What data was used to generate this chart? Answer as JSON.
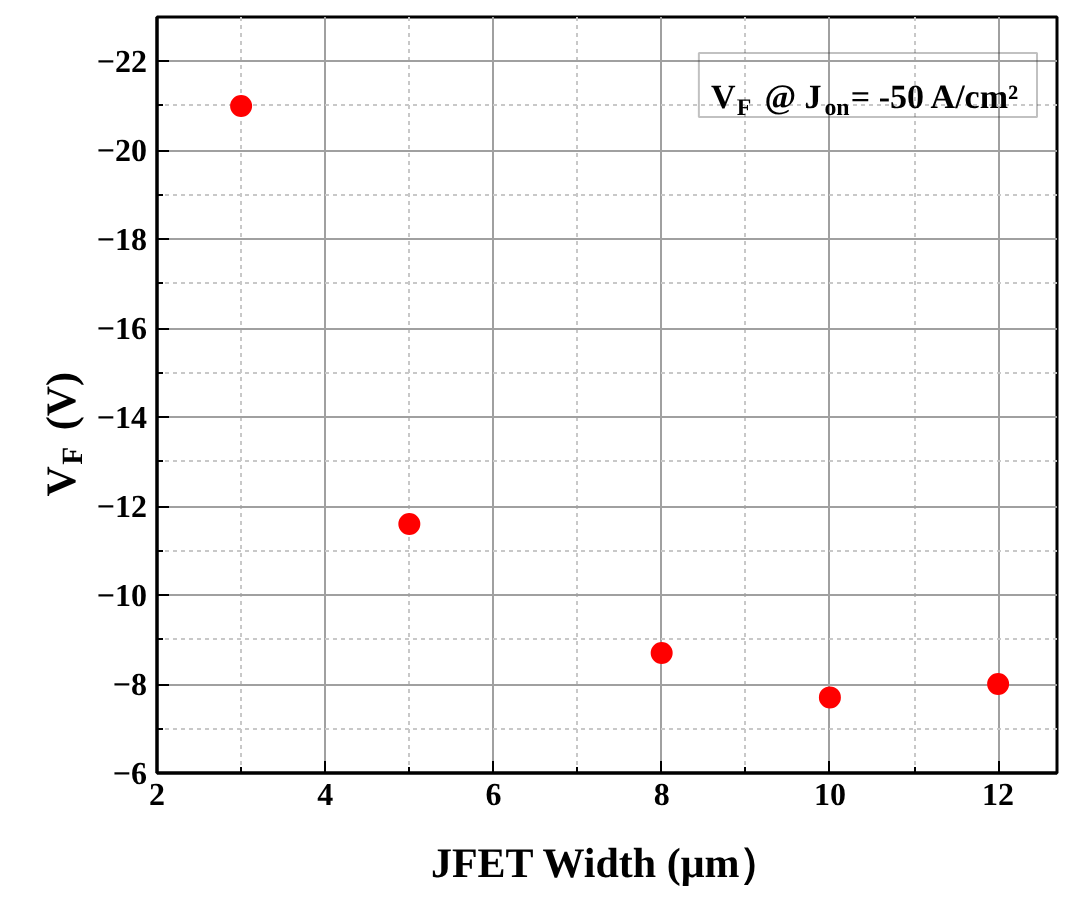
{
  "chart_data": {
    "type": "scatter",
    "xlabel": "JFET Width (μm）",
    "ylabel": "V$_{F}$ (V)",
    "annotations": [
      "V$_{F}$ @ J$_{on}$= -50 A/cm²"
    ],
    "x": [
      3,
      5,
      8,
      10,
      12
    ],
    "values": [
      -21,
      -11.6,
      -8.7,
      -7.7,
      -8
    ],
    "color": "#ff0000",
    "marker": "circle",
    "xlim": [
      2,
      12.7
    ],
    "ylim": [
      -6,
      -23
    ],
    "xticks": [
      2,
      4,
      6,
      8,
      10,
      12
    ],
    "yticks": [
      -22,
      -20,
      -18,
      -16,
      -14,
      -12,
      -10,
      -8,
      -6
    ],
    "grid": true
  }
}
